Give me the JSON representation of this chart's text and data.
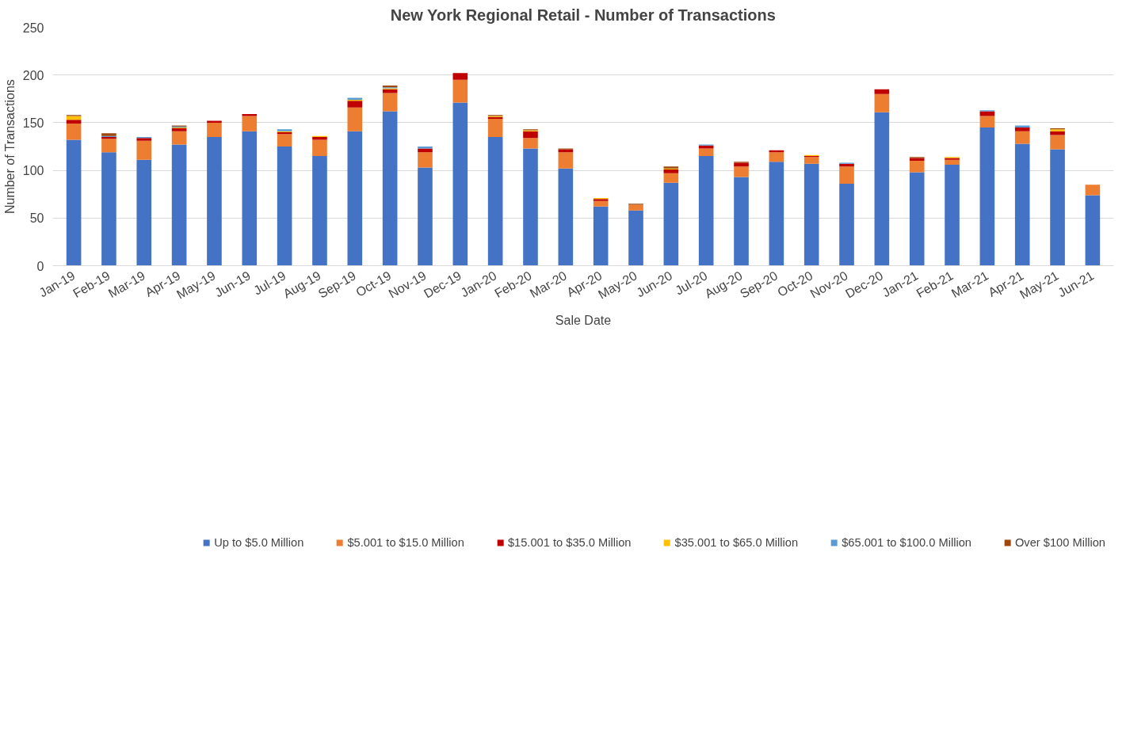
{
  "chart_data": {
    "type": "bar",
    "stacked": true,
    "title": "New York Regional Retail - Number of Transactions",
    "xlabel": "Sale Date",
    "ylabel": "Number of Transactions",
    "categories": [
      "Jan-19",
      "Feb-19",
      "Mar-19",
      "Apr-19",
      "May-19",
      "Jun-19",
      "Jul-19",
      "Aug-19",
      "Sep-19",
      "Oct-19",
      "Nov-19",
      "Dec-19",
      "Jan-20",
      "Feb-20",
      "Mar-20",
      "Apr-20",
      "May-20",
      "Jun-20",
      "Jul-20",
      "Aug-20",
      "Sep-20",
      "Oct-20",
      "Nov-20",
      "Dec-20",
      "Jan-21",
      "Feb-21",
      "Mar-21",
      "Apr-21",
      "May-21",
      "Jun-21"
    ],
    "series": [
      {
        "name": "Up to $5.0 Million",
        "color": "#4472c4",
        "values": [
          132,
          119,
          111,
          127,
          135,
          141,
          125,
          115,
          141,
          162,
          103,
          171,
          135,
          123,
          102,
          62,
          58,
          87,
          115,
          93,
          109,
          107,
          86,
          161,
          98,
          106,
          145,
          128,
          122,
          74
        ]
      },
      {
        "name": "$5.001 to $15.0 Million",
        "color": "#ed7d31",
        "values": [
          17,
          14,
          20,
          14,
          15,
          16,
          13,
          17,
          25,
          19,
          16,
          24,
          19,
          11,
          17,
          6,
          6,
          10,
          8,
          11,
          10,
          7,
          18,
          19,
          12,
          5,
          12,
          13,
          15,
          11
        ]
      },
      {
        "name": "$15.001 to $35.0 Million",
        "color": "#c00000",
        "values": [
          4,
          2,
          3,
          3,
          2,
          2,
          2,
          3,
          7,
          4,
          4,
          7,
          2,
          7,
          3,
          2,
          0,
          4,
          3,
          4,
          2,
          1,
          3,
          5,
          3,
          2,
          5,
          4,
          4,
          0
        ]
      },
      {
        "name": "$35.001 to $65.0 Million",
        "color": "#ffc000",
        "values": [
          4,
          0,
          0,
          1,
          0,
          0,
          1,
          1,
          1,
          1,
          0,
          0,
          1,
          1,
          0,
          1,
          0,
          1,
          0,
          0,
          0,
          1,
          0,
          0,
          0,
          1,
          0,
          0,
          2,
          0
        ]
      },
      {
        "name": "$65.001 to $100.0 Million",
        "color": "#5b9bd5",
        "values": [
          0,
          1,
          1,
          1,
          0,
          0,
          2,
          0,
          2,
          1,
          2,
          0,
          0,
          0,
          0,
          0,
          0,
          0,
          1,
          0,
          0,
          0,
          1,
          0,
          0,
          0,
          1,
          2,
          0,
          0
        ]
      },
      {
        "name": "Over $100 Million",
        "color": "#9e480e",
        "values": [
          1,
          3,
          0,
          1,
          0,
          0,
          0,
          0,
          0,
          2,
          0,
          0,
          1,
          1,
          1,
          0,
          1,
          2,
          0,
          1,
          0,
          0,
          0,
          0,
          1,
          0,
          0,
          0,
          1,
          0
        ]
      }
    ],
    "ylim": [
      0,
      250
    ],
    "yticks": [
      0,
      50,
      100,
      150,
      200,
      250
    ],
    "grid": "y",
    "legend": "bottom"
  }
}
